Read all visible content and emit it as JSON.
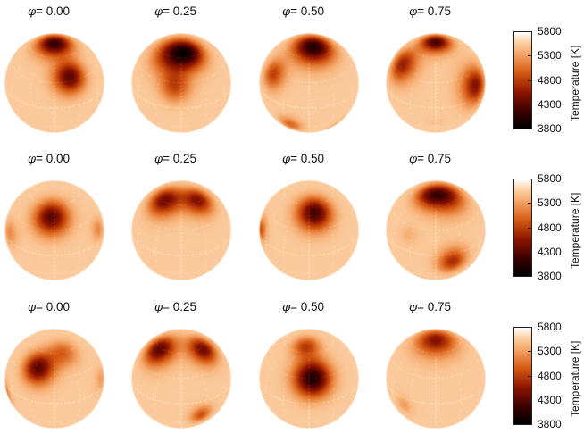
{
  "figure": {
    "phase_symbol": "φ",
    "rows": [
      {
        "panels": [
          {
            "phase_label": "= 0.00",
            "spots": [
              {
                "lat": 82,
                "lon": 0,
                "radius_deg": 14,
                "temperature_K": 4100
              },
              {
                "lat": 35,
                "lon": 22,
                "radius_deg": 13,
                "temperature_K": 4300
              }
            ]
          },
          {
            "phase_label": "= 0.25",
            "spots": [
              {
                "lat": 65,
                "lon": -15,
                "radius_deg": 18,
                "temperature_K": 4300
              },
              {
                "lat": 25,
                "lon": -8,
                "radius_deg": 12,
                "temperature_K": 4900
              },
              {
                "lat": 65,
                "lon": 25,
                "radius_deg": 13,
                "temperature_K": 4800
              }
            ]
          },
          {
            "phase_label": "= 0.50",
            "spots": [
              {
                "lat": 75,
                "lon": 20,
                "radius_deg": 16,
                "temperature_K": 4000
              },
              {
                "lat": 30,
                "lon": -55,
                "radius_deg": 12,
                "temperature_K": 4800
              },
              {
                "lat": -30,
                "lon": -25,
                "radius_deg": 9,
                "temperature_K": 5000
              },
              {
                "lat": -45,
                "lon": 50,
                "radius_deg": 8,
                "temperature_K": 5200
              }
            ]
          },
          {
            "phase_label": "= 0.75",
            "spots": [
              {
                "lat": 85,
                "lon": 0,
                "radius_deg": 12,
                "temperature_K": 4200
              },
              {
                "lat": 40,
                "lon": -60,
                "radius_deg": 14,
                "temperature_K": 4600
              },
              {
                "lat": 15,
                "lon": 55,
                "radius_deg": 15,
                "temperature_K": 4500
              },
              {
                "lat": -20,
                "lon": 0,
                "radius_deg": 7,
                "temperature_K": 5500
              }
            ]
          }
        ]
      },
      {
        "panels": [
          {
            "phase_label": "= 0.00",
            "spots": [
              {
                "lat": 45,
                "lon": -5,
                "radius_deg": 14,
                "temperature_K": 4300
              },
              {
                "lat": 10,
                "lon": -65,
                "radius_deg": 10,
                "temperature_K": 5200
              },
              {
                "lat": 15,
                "lon": 65,
                "radius_deg": 9,
                "temperature_K": 5200
              }
            ]
          },
          {
            "phase_label": "= 0.25",
            "spots": [
              {
                "lat": 62,
                "lon": -45,
                "radius_deg": 14,
                "temperature_K": 4400
              },
              {
                "lat": 62,
                "lon": 45,
                "radius_deg": 13,
                "temperature_K": 4500
              }
            ]
          },
          {
            "phase_label": "= 0.50",
            "spots": [
              {
                "lat": 50,
                "lon": 10,
                "radius_deg": 14,
                "temperature_K": 4200
              },
              {
                "lat": 10,
                "lon": -75,
                "radius_deg": 9,
                "temperature_K": 4900
              }
            ]
          },
          {
            "phase_label": "= 0.75",
            "spots": [
              {
                "lat": 72,
                "lon": 35,
                "radius_deg": 16,
                "temperature_K": 4400
              },
              {
                "lat": 72,
                "lon": -30,
                "radius_deg": 12,
                "temperature_K": 4900
              },
              {
                "lat": -10,
                "lon": 20,
                "radius_deg": 12,
                "temperature_K": 4700
              },
              {
                "lat": 20,
                "lon": -35,
                "radius_deg": 8,
                "temperature_K": 5400
              }
            ]
          }
        ]
      },
      {
        "panels": [
          {
            "phase_label": "= 0.00",
            "spots": [
              {
                "lat": 40,
                "lon": -25,
                "radius_deg": 13,
                "temperature_K": 4300
              },
              {
                "lat": 60,
                "lon": 20,
                "radius_deg": 12,
                "temperature_K": 5000
              },
              {
                "lat": -10,
                "lon": -75,
                "radius_deg": 9,
                "temperature_K": 5100
              },
              {
                "lat": 10,
                "lon": 70,
                "radius_deg": 9,
                "temperature_K": 5300
              }
            ]
          },
          {
            "phase_label": "= 0.25",
            "spots": [
              {
                "lat": 58,
                "lon": -55,
                "radius_deg": 14,
                "temperature_K": 4300
              },
              {
                "lat": 58,
                "lon": 55,
                "radius_deg": 13,
                "temperature_K": 4400
              },
              {
                "lat": -20,
                "lon": 25,
                "radius_deg": 9,
                "temperature_K": 4900
              }
            ]
          },
          {
            "phase_label": "= 0.50",
            "spots": [
              {
                "lat": 30,
                "lon": 5,
                "radius_deg": 15,
                "temperature_K": 4000
              },
              {
                "lat": 70,
                "lon": -10,
                "radius_deg": 11,
                "temperature_K": 4800
              }
            ]
          },
          {
            "phase_label": "= 0.75",
            "spots": [
              {
                "lat": 80,
                "lon": 0,
                "radius_deg": 16,
                "temperature_K": 4500
              },
              {
                "lat": -10,
                "lon": -40,
                "radius_deg": 8,
                "temperature_K": 5300
              }
            ]
          }
        ]
      }
    ]
  },
  "colorbar": {
    "label": "Temperature [K]",
    "ticks": [
      "5800",
      "5300",
      "4800",
      "4300",
      "3800"
    ],
    "min_K": 3800,
    "max_K": 5800,
    "photosphere_K": 5550,
    "stops": [
      {
        "at": 0.0,
        "color": "#000000"
      },
      {
        "at": 0.18,
        "color": "#3a0000"
      },
      {
        "at": 0.38,
        "color": "#8e1400"
      },
      {
        "at": 0.58,
        "color": "#d55a12"
      },
      {
        "at": 0.78,
        "color": "#f5a86b"
      },
      {
        "at": 0.9,
        "color": "#fcd2a8"
      },
      {
        "at": 1.0,
        "color": "#ffffff"
      }
    ]
  }
}
